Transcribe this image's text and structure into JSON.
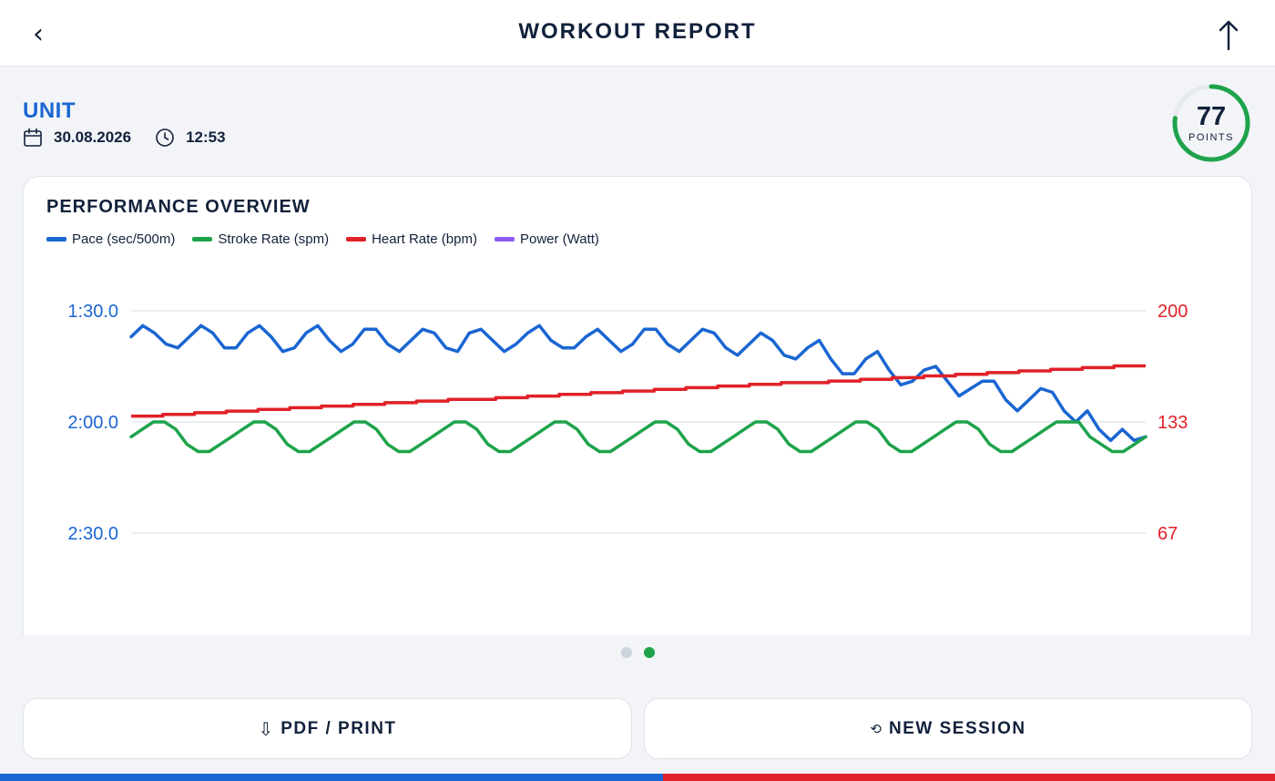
{
  "header": {
    "title": "WORKOUT REPORT",
    "back_icon": "chevron-left-icon",
    "share_icon": "arrow-up-icon"
  },
  "session": {
    "unit": "UNIT",
    "date": "30.08.2026",
    "time": "12:53",
    "date_icon": "calendar-icon",
    "time_icon": "clock-icon"
  },
  "score": {
    "value": "77",
    "label": "POINTS",
    "fraction": 0.77,
    "color": "#1ea34a"
  },
  "chart": {
    "title": "PERFORMANCE OVERVIEW",
    "legend": [
      {
        "label": "Pace (sec/500m)",
        "color": "#1a66d2"
      },
      {
        "label": "Stroke Rate (spm)",
        "color": "#1ea34a"
      },
      {
        "label": "Heart Rate (bpm)",
        "color": "#e02128"
      },
      {
        "label": "Power (Watt)",
        "color": "#8b5cf6"
      }
    ]
  },
  "chart_data": {
    "type": "line",
    "title": "PERFORMANCE OVERVIEW",
    "grid": true,
    "legend_position": "top-left",
    "y_left": {
      "label": "",
      "ticks": [
        "1:30.0",
        "2:00.0",
        "2:30.0"
      ],
      "tick_values": [
        90,
        120,
        150
      ],
      "inverted": true,
      "color": "#1a66d2"
    },
    "y_right": {
      "label": "",
      "ticks": [
        "200",
        "133",
        "67"
      ],
      "tick_values": [
        200,
        133,
        67
      ],
      "color": "#e02128"
    },
    "series": [
      {
        "name": "Pace (sec/500m)",
        "axis": "left",
        "color": "#1a66d2",
        "values": [
          97,
          94,
          96,
          99,
          100,
          97,
          94,
          96,
          100,
          100,
          96,
          94,
          97,
          101,
          100,
          96,
          94,
          98,
          101,
          99,
          95,
          95,
          99,
          101,
          98,
          95,
          96,
          100,
          101,
          96,
          95,
          98,
          101,
          99,
          96,
          94,
          98,
          100,
          100,
          97,
          95,
          98,
          101,
          99,
          95,
          95,
          99,
          101,
          98,
          95,
          96,
          100,
          102,
          99,
          96,
          98,
          102,
          103,
          100,
          98,
          103,
          107,
          107,
          103,
          101,
          106,
          110,
          109,
          106,
          105,
          109,
          113,
          111,
          109,
          109,
          114,
          117,
          114,
          111,
          112,
          117,
          120,
          117,
          122,
          125,
          122,
          125,
          124
        ]
      },
      {
        "name": "Stroke Rate (spm)",
        "axis": "left",
        "color": "#1ea34a",
        "values": [
          124,
          122,
          120,
          120,
          122,
          126,
          128,
          128,
          126,
          124,
          122,
          120,
          120,
          122,
          126,
          128,
          128,
          126,
          124,
          122,
          120,
          120,
          122,
          126,
          128,
          128,
          126,
          124,
          122,
          120,
          120,
          122,
          126,
          128,
          128,
          126,
          124,
          122,
          120,
          120,
          122,
          126,
          128,
          128,
          126,
          124,
          122,
          120,
          120,
          122,
          126,
          128,
          128,
          126,
          124,
          122,
          120,
          120,
          122,
          126,
          128,
          128,
          126,
          124,
          122,
          120,
          120,
          122,
          126,
          128,
          128,
          126,
          124,
          122,
          120,
          120,
          122,
          126,
          128,
          128,
          126,
          124,
          122,
          120,
          120,
          120,
          124,
          126,
          128,
          128,
          126,
          124
        ]
      },
      {
        "name": "Heart Rate (bpm)",
        "axis": "right",
        "color": "#e02128",
        "start": 137,
        "end": 167
      },
      {
        "name": "Power (Watt)",
        "axis": "right",
        "color": "#8b5cf6",
        "values": []
      }
    ]
  },
  "pager": {
    "count": 2,
    "active": 1,
    "active_color": "#1ea34a",
    "inactive_color": "#cdd4de"
  },
  "actions": {
    "pdf_label": "PDF / PRINT",
    "pdf_icon": "download-icon",
    "new_label": "NEW SESSION",
    "new_icon": "refresh-icon"
  },
  "stripe": {
    "left_color": "#1a66d2",
    "right_color": "#e02128"
  }
}
